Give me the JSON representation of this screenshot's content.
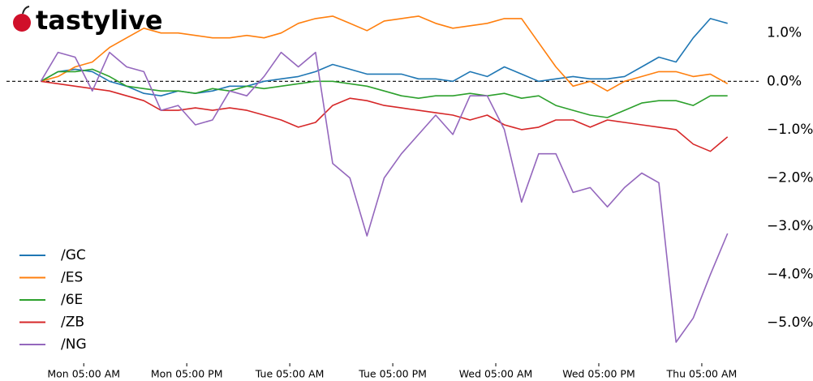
{
  "chart_data": {
    "type": "line",
    "logo": "tastylive",
    "x": [
      -5,
      -3,
      -1,
      1,
      3,
      5,
      7,
      9,
      11,
      13,
      15,
      17,
      19,
      21,
      23,
      25,
      27,
      29,
      31,
      33,
      35,
      37,
      39,
      41,
      43,
      45,
      47,
      49,
      51,
      53,
      55,
      57,
      59,
      61,
      63,
      65,
      67,
      69,
      71,
      73,
      75
    ],
    "xlim": [
      -9,
      79
    ],
    "xticks": [
      {
        "value": 0,
        "label": "Mon 05:00 AM"
      },
      {
        "value": 12,
        "label": "Mon 05:00 PM"
      },
      {
        "value": 24,
        "label": "Tue 05:00 AM"
      },
      {
        "value": 36,
        "label": "Tue 05:00 PM"
      },
      {
        "value": 48,
        "label": "Wed 05:00 AM"
      },
      {
        "value": 60,
        "label": "Wed 05:00 PM"
      },
      {
        "value": 72,
        "label": "Thu 05:00 AM"
      }
    ],
    "ylim": [
      -5.55,
      1.6
    ],
    "yticks": [
      {
        "value": 1,
        "label": "1.0%"
      },
      {
        "value": 0,
        "label": "0.0%"
      },
      {
        "value": -1,
        "label": "−1.0%"
      },
      {
        "value": -2,
        "label": "−2.0%"
      },
      {
        "value": -3,
        "label": "−3.0%"
      },
      {
        "value": -4,
        "label": "−4.0%"
      },
      {
        "value": -5,
        "label": "−5.0%"
      }
    ],
    "zero_line": true,
    "legend": "lower left",
    "series": [
      {
        "name": "/GC",
        "color": "#1f77b4",
        "values": [
          0,
          0.2,
          0.25,
          0.2,
          0.0,
          -0.1,
          -0.25,
          -0.3,
          -0.2,
          -0.25,
          -0.2,
          -0.1,
          -0.1,
          0,
          0.05,
          0.1,
          0.2,
          0.35,
          0.25,
          0.15,
          0.15,
          0.15,
          0.05,
          0.05,
          0.0,
          0.2,
          0.1,
          0.3,
          0.15,
          0.0,
          0.05,
          0.1,
          0.05,
          0.05,
          0.1,
          0.3,
          0.5,
          0.4,
          0.9,
          1.3,
          1.2
        ]
      },
      {
        "name": "/ES",
        "color": "#ff7f0e",
        "values": [
          0,
          0.1,
          0.3,
          0.4,
          0.7,
          0.9,
          1.1,
          1.0,
          1.0,
          0.95,
          0.9,
          0.9,
          0.95,
          0.9,
          1.0,
          1.2,
          1.3,
          1.35,
          1.2,
          1.05,
          1.25,
          1.3,
          1.35,
          1.2,
          1.1,
          1.15,
          1.2,
          1.3,
          1.3,
          0.8,
          0.3,
          -0.1,
          0.0,
          -0.2,
          0.0,
          0.1,
          0.2,
          0.2,
          0.1,
          0.15,
          -0.05
        ]
      },
      {
        "name": "/6E",
        "color": "#2ca02c",
        "values": [
          0,
          0.2,
          0.2,
          0.25,
          0.1,
          -0.1,
          -0.15,
          -0.2,
          -0.2,
          -0.25,
          -0.15,
          -0.2,
          -0.1,
          -0.15,
          -0.1,
          -0.05,
          0.0,
          0.0,
          -0.05,
          -0.1,
          -0.2,
          -0.3,
          -0.35,
          -0.3,
          -0.3,
          -0.25,
          -0.3,
          -0.25,
          -0.35,
          -0.3,
          -0.5,
          -0.6,
          -0.7,
          -0.75,
          -0.6,
          -0.45,
          -0.4,
          -0.4,
          -0.5,
          -0.3,
          -0.3
        ]
      },
      {
        "name": "/ZB",
        "color": "#d62728",
        "values": [
          0,
          -0.05,
          -0.1,
          -0.15,
          -0.2,
          -0.3,
          -0.4,
          -0.6,
          -0.6,
          -0.55,
          -0.6,
          -0.55,
          -0.6,
          -0.7,
          -0.8,
          -0.95,
          -0.85,
          -0.5,
          -0.35,
          -0.4,
          -0.5,
          -0.55,
          -0.6,
          -0.65,
          -0.7,
          -0.8,
          -0.7,
          -0.9,
          -1.0,
          -0.95,
          -0.8,
          -0.8,
          -0.95,
          -0.8,
          -0.85,
          -0.9,
          -0.95,
          -1.0,
          -1.3,
          -1.45,
          -1.15
        ]
      },
      {
        "name": "/NG",
        "color": "#9467bd",
        "values": [
          0,
          0.6,
          0.5,
          -0.2,
          0.6,
          0.3,
          0.2,
          -0.6,
          -0.5,
          -0.9,
          -0.8,
          -0.2,
          -0.3,
          0.1,
          0.6,
          0.3,
          0.6,
          -1.7,
          -2.0,
          -3.2,
          -2.0,
          -1.5,
          -1.1,
          -0.7,
          -1.1,
          -0.3,
          -0.3,
          -1.0,
          -2.5,
          -1.5,
          -1.5,
          -2.3,
          -2.2,
          -2.6,
          -2.2,
          -1.9,
          -2.1,
          -5.4,
          -4.9,
          -4.0,
          -3.15
        ]
      }
    ]
  }
}
